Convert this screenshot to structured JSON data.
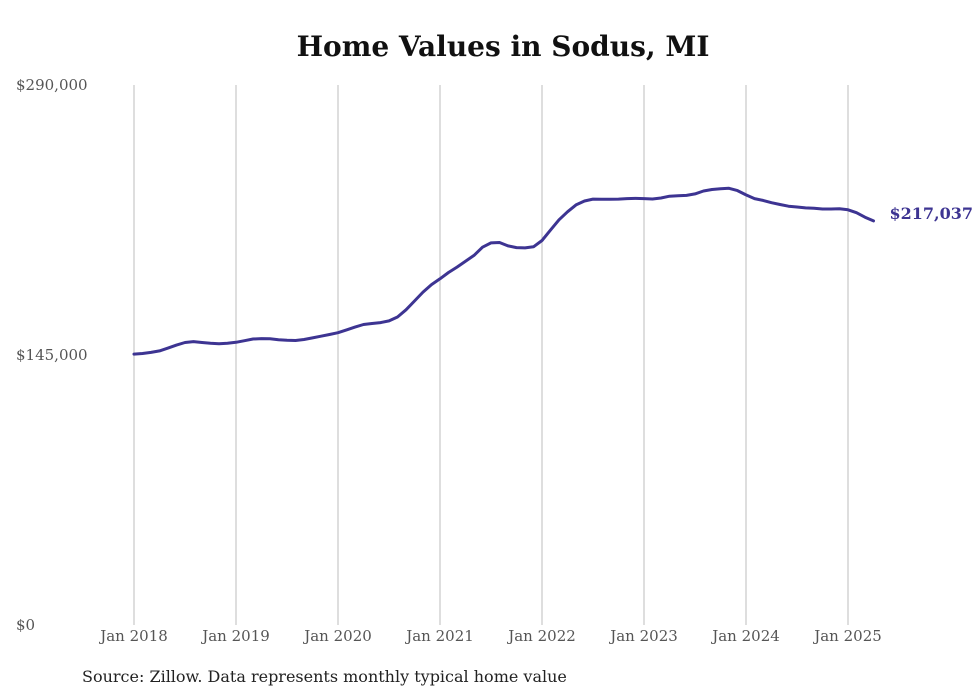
{
  "chart_data": {
    "type": "line",
    "title": "Home Values in Sodus, MI",
    "source_note": "Source: Zillow. Data represents monthly typical home value",
    "xlabel": "",
    "ylabel": "",
    "ylim": [
      0,
      290000
    ],
    "y_ticks": [
      {
        "value": 0,
        "label": "$0"
      },
      {
        "value": 145000,
        "label": "$145,000"
      },
      {
        "value": 290000,
        "label": "$290,000"
      }
    ],
    "x_ticks": [
      {
        "date": "2018-01",
        "label": "Jan 2018"
      },
      {
        "date": "2019-01",
        "label": "Jan 2019"
      },
      {
        "date": "2020-01",
        "label": "Jan 2020"
      },
      {
        "date": "2021-01",
        "label": "Jan 2021"
      },
      {
        "date": "2022-01",
        "label": "Jan 2022"
      },
      {
        "date": "2023-01",
        "label": "Jan 2023"
      },
      {
        "date": "2024-01",
        "label": "Jan 2024"
      },
      {
        "date": "2025-01",
        "label": "Jan 2025"
      }
    ],
    "grid": "vertical",
    "line_color": "#3d3492",
    "end_label": "$217,037",
    "series": [
      {
        "x": [
          "2018-01",
          "2018-02",
          "2018-03",
          "2018-04",
          "2018-05",
          "2018-06",
          "2018-07",
          "2018-08",
          "2018-09",
          "2018-10",
          "2018-11",
          "2018-12",
          "2019-01",
          "2019-02",
          "2019-03",
          "2019-04",
          "2019-05",
          "2019-06",
          "2019-07",
          "2019-08",
          "2019-09",
          "2019-10",
          "2019-11",
          "2019-12",
          "2020-01",
          "2020-02",
          "2020-03",
          "2020-04",
          "2020-05",
          "2020-06",
          "2020-07",
          "2020-08",
          "2020-09",
          "2020-10",
          "2020-11",
          "2020-12",
          "2021-01",
          "2021-02",
          "2021-03",
          "2021-04",
          "2021-05",
          "2021-06",
          "2021-07",
          "2021-08",
          "2021-09",
          "2021-10",
          "2021-11",
          "2021-12",
          "2022-01",
          "2022-02",
          "2022-03",
          "2022-04",
          "2022-05",
          "2022-06",
          "2022-07",
          "2022-08",
          "2022-09",
          "2022-10",
          "2022-11",
          "2022-12",
          "2023-01",
          "2023-02",
          "2023-03",
          "2023-04",
          "2023-05",
          "2023-06",
          "2023-07",
          "2023-08",
          "2023-09",
          "2023-10",
          "2023-11",
          "2023-12",
          "2024-01",
          "2024-02",
          "2024-03",
          "2024-04",
          "2024-05",
          "2024-06",
          "2024-07",
          "2024-08",
          "2024-09",
          "2024-10",
          "2024-11",
          "2024-12",
          "2025-01",
          "2025-02",
          "2025-03",
          "2025-04"
        ],
        "values": [
          145500,
          145800,
          146400,
          147200,
          148700,
          150300,
          151700,
          152200,
          151700,
          151300,
          151000,
          151300,
          151800,
          152700,
          153600,
          153800,
          153700,
          153200,
          152900,
          152800,
          153300,
          154200,
          155100,
          156000,
          157000,
          158500,
          160000,
          161400,
          161900,
          162400,
          163300,
          165400,
          169300,
          174000,
          178800,
          182800,
          185900,
          189300,
          192200,
          195300,
          198500,
          202900,
          205200,
          205400,
          203600,
          202700,
          202500,
          203100,
          206500,
          212100,
          217600,
          221900,
          225600,
          227700,
          228700,
          228600,
          228600,
          228700,
          229000,
          229100,
          229000,
          228800,
          229300,
          230300,
          230500,
          230700,
          231500,
          233100,
          233900,
          234300,
          234500,
          233300,
          231000,
          229000,
          228000,
          226800,
          225800,
          224900,
          224500,
          224000,
          223800,
          223400,
          223400,
          223500,
          223000,
          221400,
          219000,
          217037
        ]
      }
    ]
  }
}
